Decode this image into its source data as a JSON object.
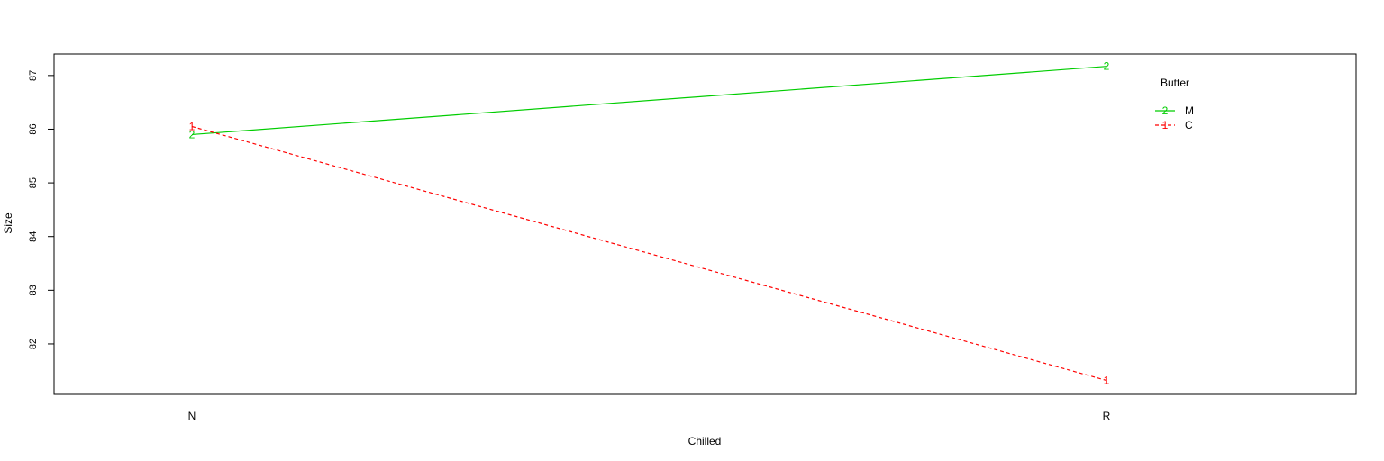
{
  "chart_data": {
    "type": "line",
    "title": "",
    "xlabel": "Chilled",
    "ylabel": "Size",
    "categories": [
      "N",
      "R"
    ],
    "ylim": [
      81.06,
      87.4
    ],
    "yticks": [
      82,
      83,
      84,
      85,
      86,
      87
    ],
    "grid": false,
    "legend": {
      "title": "Butter",
      "placement": "top-right",
      "entries": [
        {
          "label": "M",
          "symbol": "2",
          "color": "#00cd00",
          "dash": "solid"
        },
        {
          "label": "C",
          "symbol": "1",
          "color": "#ff0000",
          "dash": "dashed"
        }
      ]
    },
    "series": [
      {
        "name": "M",
        "symbol": "2",
        "color": "#00cd00",
        "dash": "solid",
        "values": [
          85.9,
          87.17
        ]
      },
      {
        "name": "C",
        "symbol": "1",
        "color": "#ff0000",
        "dash": "dashed",
        "values": [
          86.05,
          81.32
        ]
      }
    ]
  }
}
